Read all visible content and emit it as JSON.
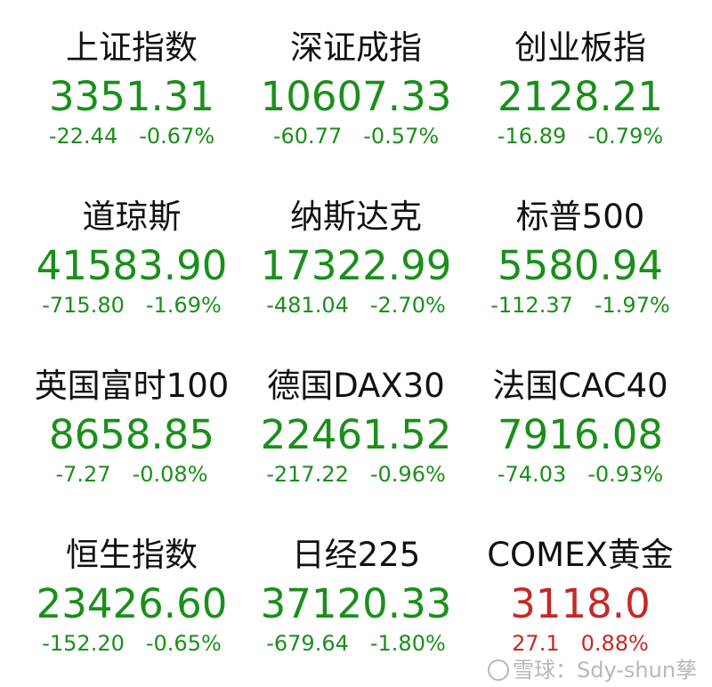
{
  "colors": {
    "down": "#1a8f1a",
    "up": "#c62828"
  },
  "indices": [
    {
      "name": "上证指数",
      "value": "3351.31",
      "change": "-22.44",
      "percent": "-0.67%",
      "trend": "down"
    },
    {
      "name": "深证成指",
      "value": "10607.33",
      "change": "-60.77",
      "percent": "-0.57%",
      "trend": "down"
    },
    {
      "name": "创业板指",
      "value": "2128.21",
      "change": "-16.89",
      "percent": "-0.79%",
      "trend": "down"
    },
    {
      "name": "道琼斯",
      "value": "41583.90",
      "change": "-715.80",
      "percent": "-1.69%",
      "trend": "down"
    },
    {
      "name": "纳斯达克",
      "value": "17322.99",
      "change": "-481.04",
      "percent": "-2.70%",
      "trend": "down"
    },
    {
      "name": "标普500",
      "value": "5580.94",
      "change": "-112.37",
      "percent": "-1.97%",
      "trend": "down"
    },
    {
      "name": "英国富时100",
      "value": "8658.85",
      "change": "-7.27",
      "percent": "-0.08%",
      "trend": "down"
    },
    {
      "name": "德国DAX30",
      "value": "22461.52",
      "change": "-217.22",
      "percent": "-0.96%",
      "trend": "down"
    },
    {
      "name": "法国CAC40",
      "value": "7916.08",
      "change": "-74.03",
      "percent": "-0.93%",
      "trend": "down"
    },
    {
      "name": "恒生指数",
      "value": "23426.60",
      "change": "-152.20",
      "percent": "-0.65%",
      "trend": "down"
    },
    {
      "name": "日经225",
      "value": "37120.33",
      "change": "-679.64",
      "percent": "-1.80%",
      "trend": "down"
    },
    {
      "name": "COMEX黄金",
      "value": "3118.0",
      "change": "27.1",
      "percent": "0.88%",
      "trend": "up"
    }
  ],
  "watermark": {
    "text": "雪球：Sdy-shun孳",
    "icon": "snowball-logo-icon"
  }
}
